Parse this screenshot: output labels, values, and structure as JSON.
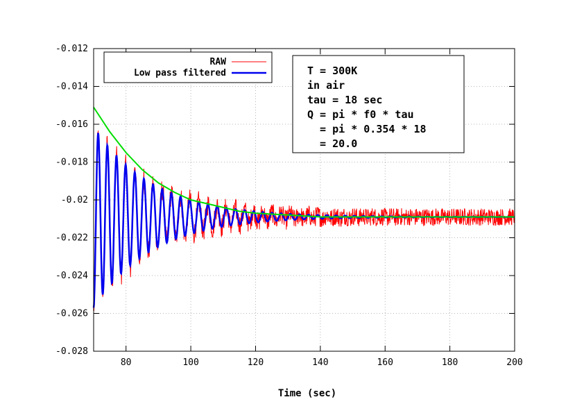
{
  "chart_data": {
    "type": "line",
    "xlabel": "Time (sec)",
    "ylabel": "",
    "xlim": [
      70,
      200
    ],
    "ylim": [
      -0.028,
      -0.012
    ],
    "x_ticks": [
      80,
      100,
      120,
      140,
      160,
      180,
      200
    ],
    "x_tick_labels": [
      "80",
      "100",
      "120",
      "140",
      "160",
      "180",
      "200"
    ],
    "y_ticks": [
      -0.028,
      -0.026,
      -0.024,
      -0.022,
      -0.02,
      -0.018,
      -0.016,
      -0.014,
      -0.012
    ],
    "y_tick_labels": [
      "-0.028",
      "-0.026",
      "-0.024",
      "-0.022",
      "-0.02",
      "-0.018",
      "-0.016",
      "-0.014",
      "-0.012"
    ],
    "grid": true,
    "legend_position": "top-left",
    "series": [
      {
        "name": "RAW",
        "color": "#ff0000",
        "model": {
          "offset": -0.0209,
          "amplitude": -0.0048,
          "tau": 18,
          "frequency": 0.354,
          "noise": 0.0008,
          "t0": 70,
          "t_end": 200
        }
      },
      {
        "name": "Low pass filtered",
        "color": "#0000ee",
        "model": {
          "offset": -0.0209,
          "amplitude": -0.0048,
          "tau": 18,
          "frequency": 0.354,
          "noise": 0.0,
          "t0": 70,
          "t_end": 200
        }
      },
      {
        "name": "",
        "color": "#00dd00",
        "x": [
          70,
          75,
          80,
          85,
          90,
          95,
          100,
          105,
          110,
          115,
          120,
          130,
          140,
          150,
          160,
          170,
          180,
          190,
          200
        ],
        "y": [
          -0.0151,
          -0.0164,
          -0.0175,
          -0.0184,
          -0.0191,
          -0.0196,
          -0.02,
          -0.0202,
          -0.0204,
          -0.0206,
          -0.0207,
          -0.0208,
          -0.0209,
          -0.0209,
          -0.0209,
          -0.0209,
          -0.0209,
          -0.0209,
          -0.0209
        ]
      }
    ],
    "annotation_lines": [
      "T = 300K",
      "in air",
      "tau = 18 sec",
      "Q = pi * f0 * tau",
      "  = pi * 0.354 * 18",
      "  = 20.0"
    ]
  }
}
